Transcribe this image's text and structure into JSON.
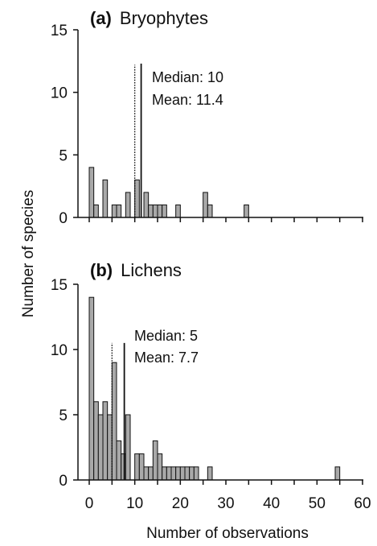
{
  "chart_data": [
    {
      "type": "bar",
      "panel_letter": "(a)",
      "panel_name": "Bryophytes",
      "x_bin_starts": [
        0,
        1,
        2,
        3,
        4,
        5,
        6,
        7,
        8,
        9,
        10,
        11,
        12,
        13,
        14,
        15,
        16,
        17,
        18,
        19,
        20,
        21,
        22,
        23,
        24,
        25,
        26,
        27,
        28,
        29,
        30,
        31,
        32,
        33,
        34
      ],
      "values": [
        4,
        1,
        0,
        3,
        0,
        1,
        1,
        0,
        2,
        0,
        3,
        0,
        2,
        1,
        1,
        1,
        1,
        0,
        0,
        1,
        0,
        0,
        0,
        0,
        0,
        2,
        1,
        0,
        0,
        0,
        0,
        0,
        0,
        0,
        1
      ],
      "ylim": [
        0,
        15
      ],
      "yticks": [
        "0",
        "5",
        "10",
        "15"
      ],
      "xlim": [
        0,
        60
      ],
      "median": 10,
      "mean": 11.4,
      "median_label": "Median: 10",
      "mean_label": "Mean: 11.4"
    },
    {
      "type": "bar",
      "panel_letter": "(b)",
      "panel_name": "Lichens",
      "x_bin_starts": [
        0,
        1,
        2,
        3,
        4,
        5,
        6,
        7,
        8,
        9,
        10,
        11,
        12,
        13,
        14,
        15,
        16,
        17,
        18,
        19,
        20,
        21,
        22,
        23,
        24,
        25,
        26,
        27,
        28,
        29,
        30,
        31,
        32,
        33,
        34,
        35,
        36,
        37,
        38,
        39,
        40,
        41,
        42,
        43,
        44,
        45,
        46,
        47,
        48,
        49,
        50,
        51,
        52,
        53,
        54
      ],
      "values": [
        14,
        6,
        5,
        6,
        5,
        9,
        3,
        2,
        5,
        0,
        2,
        2,
        1,
        1,
        3,
        2,
        1,
        1,
        1,
        1,
        1,
        1,
        1,
        1,
        0,
        0,
        1,
        0,
        0,
        0,
        0,
        0,
        0,
        0,
        0,
        0,
        0,
        0,
        0,
        0,
        0,
        0,
        0,
        0,
        0,
        0,
        0,
        0,
        0,
        0,
        0,
        0,
        0,
        0,
        1
      ],
      "ylim": [
        0,
        15
      ],
      "yticks": [
        "0",
        "5",
        "10",
        "15"
      ],
      "xlim": [
        0,
        60
      ],
      "xticks": [
        "0",
        "10",
        "20",
        "30",
        "40",
        "50",
        "60"
      ],
      "median": 5,
      "mean": 7.7,
      "median_label": "Median: 5",
      "mean_label": "Mean: 7.7"
    }
  ],
  "shared": {
    "ylabel": "Number of species",
    "xlabel": "Number of observations"
  }
}
